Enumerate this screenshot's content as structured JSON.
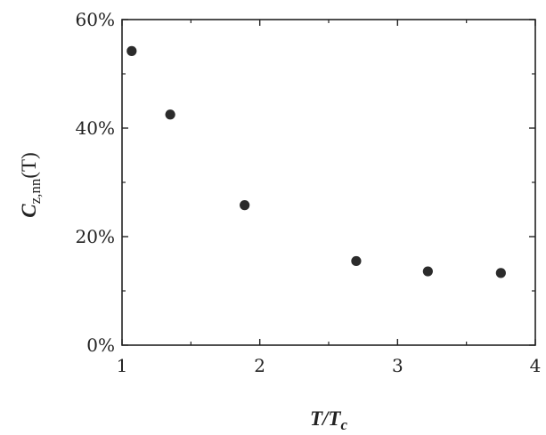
{
  "chart_data": {
    "type": "scatter",
    "title": "",
    "xlabel": {
      "main": "T/T",
      "sub": "c"
    },
    "ylabel": {
      "main": "C",
      "sub": "z,nn",
      "tail": "(T)"
    },
    "xlim": [
      1,
      4
    ],
    "ylim": [
      0,
      60
    ],
    "xticks": [
      1,
      2,
      3,
      4
    ],
    "xtick_labels": [
      "1",
      "2",
      "3",
      "4"
    ],
    "yticks": [
      0,
      20,
      40,
      60
    ],
    "ytick_labels": [
      "0%",
      "20%",
      "40%",
      "60%"
    ],
    "grid": false,
    "legend": "none",
    "marker_color": "#2b2b2b",
    "series": [
      {
        "x": [
          1.07,
          1.35,
          1.89,
          2.7,
          3.22,
          3.75
        ],
        "y": [
          54.2,
          42.5,
          25.8,
          15.5,
          13.6,
          13.3
        ]
      }
    ]
  }
}
